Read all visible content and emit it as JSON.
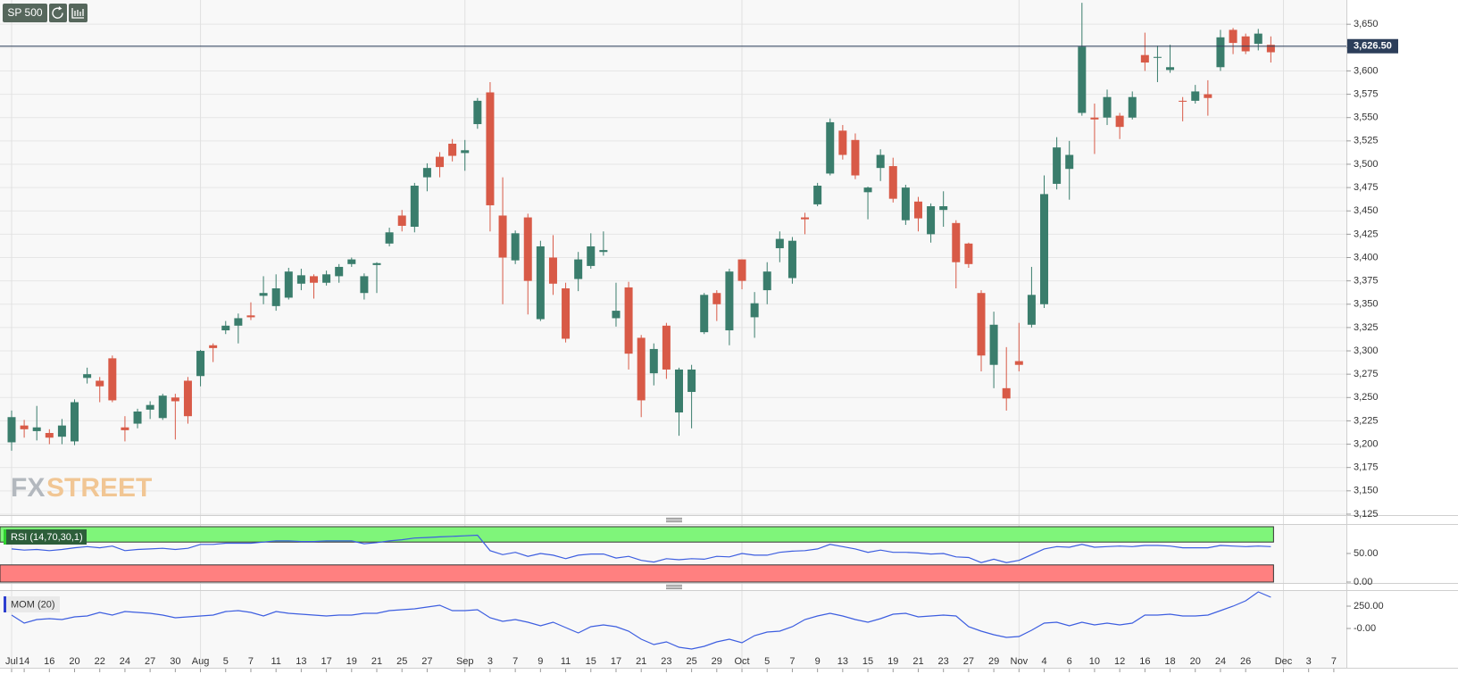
{
  "toolbar": {
    "symbol": "SP 500"
  },
  "watermark": {
    "left": "FX",
    "right": "STREET"
  },
  "chart_data": [
    {
      "type": "candlestick",
      "categories": [
        "Jul",
        "14",
        null,
        "16",
        null,
        "20",
        null,
        "22",
        null,
        "24",
        null,
        "27",
        null,
        "30",
        null,
        "Aug",
        null,
        "5",
        null,
        "7",
        null,
        "11",
        null,
        "13",
        null,
        "17",
        null,
        "19",
        null,
        "21",
        null,
        "25",
        null,
        "27",
        null,
        null,
        "Sep",
        null,
        "3",
        null,
        "7",
        null,
        "9",
        null,
        "11",
        null,
        "15",
        null,
        "17",
        null,
        "21",
        null,
        "23",
        null,
        "25",
        null,
        "29",
        null,
        "Oct",
        null,
        "5",
        null,
        "7",
        null,
        "9",
        null,
        "13",
        null,
        "15",
        null,
        "19",
        null,
        "21",
        null,
        "23",
        null,
        "27",
        null,
        "29",
        null,
        "Nov",
        null,
        "4",
        null,
        "6",
        null,
        "10",
        null,
        "12",
        null,
        "16",
        null,
        "18",
        null,
        "20",
        null,
        "24",
        null,
        "26",
        null,
        null,
        "Dec",
        null,
        "3",
        null,
        "7"
      ],
      "open": [
        3202,
        3220,
        3214,
        3212,
        3208,
        3203,
        3271,
        3268,
        3292,
        3218,
        3222,
        3237,
        3228,
        3250,
        3268,
        3273,
        3306,
        3322,
        3327,
        3338,
        3359,
        3348,
        3357,
        3372,
        3380,
        3373,
        3380,
        3393,
        3362,
        3392,
        3415,
        3445,
        3433,
        3486,
        3508,
        3522,
        3512,
        3543,
        3577,
        3445,
        3397,
        3443,
        3334,
        3400,
        3367,
        3377,
        3391,
        3406,
        3335,
        3368,
        3314,
        3276,
        3327,
        3234,
        3256,
        3320,
        3362,
        3322,
        3398,
        3336,
        3365,
        3410,
        3378,
        3443,
        3457,
        3490,
        3536,
        3526,
        3470,
        3496,
        3498,
        3440,
        3460,
        3425,
        3451,
        3437,
        3415,
        3362,
        3285,
        3260,
        3289,
        3328,
        3350,
        3479,
        3495,
        3555,
        3550,
        3550,
        3552,
        3550,
        3617,
        3614,
        3601,
        3568,
        3568,
        3575,
        3604,
        3644,
        3637,
        3629,
        3628,
        null,
        null,
        null,
        null,
        null
      ],
      "high": [
        3236,
        3226,
        3241,
        3216,
        3227,
        3248,
        3282,
        3272,
        3295,
        3230,
        3238,
        3246,
        3254,
        3254,
        3272,
        3301,
        3308,
        3332,
        3340,
        3352,
        3380,
        3382,
        3389,
        3388,
        3382,
        3386,
        3393,
        3400,
        3383,
        3395,
        3432,
        3451,
        3480,
        3501,
        3513,
        3527,
        3526,
        3571,
        3588,
        3486,
        3429,
        3447,
        3418,
        3424,
        3373,
        3406,
        3426,
        3428,
        3373,
        3374,
        3317,
        3308,
        3330,
        3282,
        3285,
        3362,
        3365,
        3388,
        3398,
        3363,
        3395,
        3428,
        3422,
        3448,
        3480,
        3549,
        3542,
        3533,
        3476,
        3516,
        3507,
        3478,
        3465,
        3458,
        3471,
        3440,
        3416,
        3365,
        3342,
        3304,
        3330,
        3390,
        3488,
        3529,
        3525,
        3673,
        3565,
        3580,
        3555,
        3578,
        3641,
        3627,
        3628,
        3572,
        3585,
        3590,
        3644,
        3646,
        3640,
        3645,
        3637,
        null,
        null,
        null,
        null,
        null
      ],
      "low": [
        3193,
        3207,
        3204,
        3200,
        3200,
        3199,
        3265,
        3245,
        3245,
        3203,
        3217,
        3227,
        3226,
        3205,
        3222,
        3262,
        3288,
        3318,
        3308,
        3333,
        3350,
        3343,
        3355,
        3365,
        3356,
        3370,
        3373,
        3390,
        3355,
        3362,
        3412,
        3428,
        3427,
        3471,
        3486,
        3503,
        3493,
        3538,
        3428,
        3350,
        3393,
        3339,
        3332,
        3360,
        3309,
        3364,
        3388,
        3402,
        3326,
        3280,
        3229,
        3263,
        3270,
        3209,
        3217,
        3318,
        3332,
        3306,
        3366,
        3314,
        3350,
        3395,
        3372,
        3425,
        3455,
        3488,
        3505,
        3484,
        3441,
        3482,
        3459,
        3435,
        3428,
        3416,
        3433,
        3367,
        3389,
        3278,
        3260,
        3236,
        3278,
        3325,
        3346,
        3473,
        3462,
        3552,
        3511,
        3542,
        3527,
        3548,
        3600,
        3588,
        3598,
        3546,
        3565,
        3552,
        3600,
        3618,
        3618,
        3622,
        3609,
        null,
        null,
        null,
        null,
        null
      ],
      "close": [
        3229,
        3216,
        3218,
        3207,
        3220,
        3245,
        3275,
        3262,
        3247,
        3215,
        3235,
        3242,
        3252,
        3246,
        3230,
        3300,
        3303,
        3327,
        3335,
        3336,
        3362,
        3367,
        3385,
        3381,
        3373,
        3382,
        3390,
        3398,
        3380,
        3394,
        3427,
        3434,
        3477,
        3496,
        3497,
        3509,
        3515,
        3568,
        3456,
        3400,
        3426,
        3375,
        3412,
        3372,
        3313,
        3398,
        3412,
        3408,
        3343,
        3297,
        3247,
        3302,
        3280,
        3280,
        3280,
        3360,
        3350,
        3385,
        3375,
        3351,
        3385,
        3420,
        3418,
        3441,
        3477,
        3545,
        3510,
        3488,
        3475,
        3510,
        3463,
        3475,
        3442,
        3455,
        3455,
        3395,
        3393,
        3295,
        3328,
        3249,
        3285,
        3360,
        3468,
        3518,
        3510,
        3626,
        3548,
        3572,
        3540,
        3572,
        3609,
        3615,
        3604,
        3567,
        3578,
        3571,
        3636,
        3630,
        3621,
        3640,
        3620,
        null,
        null,
        null,
        null,
        null
      ],
      "up_color": "#3a7d6c",
      "down_color": "#d85a47",
      "ylim": [
        3124,
        3676
      ],
      "yticks": [
        {
          "value": 3125,
          "label": "3,125"
        },
        {
          "value": 3150,
          "label": "3,150"
        },
        {
          "value": 3175,
          "label": "3,175"
        },
        {
          "value": 3200,
          "label": "3,200"
        },
        {
          "value": 3225,
          "label": "3,225"
        },
        {
          "value": 3250,
          "label": "3,250"
        },
        {
          "value": 3275,
          "label": "3,275"
        },
        {
          "value": 3300,
          "label": "3,300"
        },
        {
          "value": 3325,
          "label": "3,325"
        },
        {
          "value": 3350,
          "label": "3,350"
        },
        {
          "value": 3375,
          "label": "3,375"
        },
        {
          "value": 3400,
          "label": "3,400"
        },
        {
          "value": 3425,
          "label": "3,425"
        },
        {
          "value": 3450,
          "label": "3,450"
        },
        {
          "value": 3475,
          "label": "3,475"
        },
        {
          "value": 3500,
          "label": "3,500"
        },
        {
          "value": 3525,
          "label": "3,525"
        },
        {
          "value": 3550,
          "label": "3,550"
        },
        {
          "value": 3575,
          "label": "3,575"
        },
        {
          "value": 3600,
          "label": "3,600"
        },
        {
          "value": 3625,
          "label": "3,625"
        },
        {
          "value": 3650,
          "label": "3,650"
        }
      ],
      "last_price": {
        "value": 3626.5,
        "label": "3,626.50"
      },
      "grid": true
    },
    {
      "type": "line",
      "title": "RSI (14,70,30,1)",
      "color": "#3d5ee0",
      "values": [
        58,
        56,
        57,
        55,
        57,
        60,
        62,
        60,
        63,
        55,
        57,
        58,
        59,
        57,
        59,
        66,
        66,
        68,
        68,
        68,
        70,
        72,
        72,
        71,
        71,
        72,
        72,
        72,
        67,
        69,
        72,
        74,
        77,
        78,
        79,
        80,
        81,
        82,
        55,
        48,
        52,
        45,
        50,
        47,
        41,
        47,
        49,
        49,
        42,
        45,
        38,
        35,
        41,
        39,
        41,
        40,
        45,
        44,
        50,
        47,
        47,
        52,
        54,
        55,
        58,
        66,
        62,
        58,
        52,
        56,
        52,
        52,
        51,
        49,
        50,
        44,
        43,
        34,
        40,
        34,
        38,
        48,
        58,
        62,
        61,
        66,
        61,
        62,
        63,
        62,
        64,
        64,
        63,
        60,
        60,
        60,
        64,
        63,
        62,
        63,
        62,
        null,
        null,
        null,
        null,
        null
      ],
      "upper_band": 70,
      "lower_band": 30,
      "upper_color": "#7ff57a",
      "lower_color": "#ff8080",
      "ylim": [
        0,
        100
      ],
      "yticks": [
        {
          "value": 50,
          "label": "50.00"
        },
        {
          "value": 0,
          "label": "0.00"
        }
      ]
    },
    {
      "type": "line",
      "title": "MOM (20)",
      "color": "#3d5ee0",
      "values": [
        150,
        60,
        100,
        110,
        100,
        130,
        140,
        180,
        150,
        190,
        180,
        170,
        150,
        120,
        130,
        140,
        150,
        190,
        200,
        180,
        140,
        190,
        170,
        160,
        150,
        140,
        150,
        150,
        170,
        170,
        200,
        210,
        220,
        240,
        260,
        200,
        200,
        210,
        120,
        80,
        100,
        70,
        30,
        70,
        10,
        -50,
        20,
        40,
        20,
        -30,
        -120,
        -180,
        -150,
        -210,
        -230,
        -200,
        -150,
        -120,
        -160,
        -80,
        -40,
        -30,
        20,
        100,
        140,
        170,
        140,
        100,
        70,
        110,
        160,
        170,
        130,
        140,
        150,
        140,
        20,
        -30,
        -70,
        -100,
        -90,
        -20,
        60,
        70,
        30,
        70,
        40,
        60,
        40,
        60,
        150,
        150,
        160,
        140,
        140,
        150,
        200,
        250,
        310,
        410,
        350,
        null,
        null,
        null,
        null,
        null
      ],
      "ylim": [
        -440,
        420
      ],
      "yticks": [
        {
          "value": 250,
          "label": "250.00"
        },
        {
          "value": 0,
          "label": "-0.00"
        }
      ]
    }
  ]
}
